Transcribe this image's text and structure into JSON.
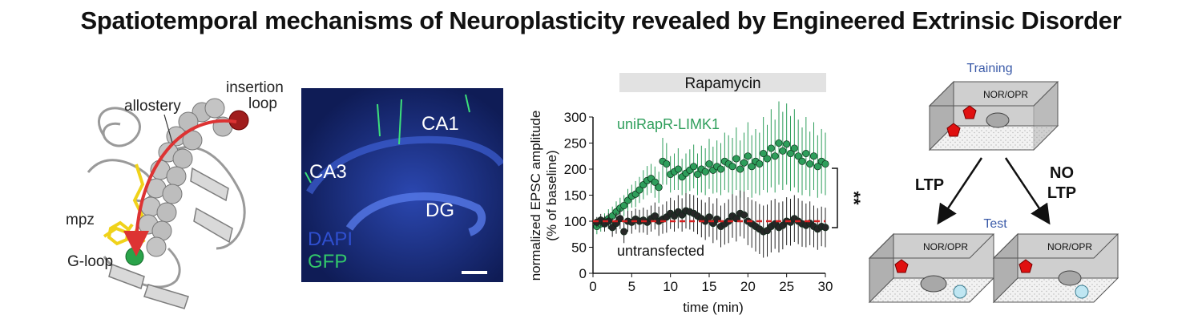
{
  "title": "Spatiotemporal mechanisms of Neuroplasticity revealed by Engineered Extrinsic Disorder",
  "protein": {
    "insertion_loop": [
      "insertion",
      "loop"
    ],
    "allostery": "allostery",
    "mpz": "mpz",
    "g_loop": "G-loop"
  },
  "micrograph": {
    "ca1": "CA1",
    "ca3": "CA3",
    "dg": "DG",
    "dapi": "DAPI",
    "gfp": "GFP"
  },
  "chart_data": {
    "type": "scatter",
    "drug_bar": "Rapamycin",
    "ylabel_line1": "normalized EPSC amplitude",
    "ylabel_line2": "(% of baseline)",
    "xlabel": "time (min)",
    "xlim": [
      0,
      30
    ],
    "ylim": [
      0,
      300
    ],
    "xticks": [
      "0",
      "5",
      "10",
      "15",
      "20",
      "25",
      "30"
    ],
    "yticks": [
      "0",
      "50",
      "100",
      "150",
      "200",
      "250",
      "300"
    ],
    "baseline": 100,
    "significance": "**",
    "series": [
      {
        "name": "uniRapR-LIMK1",
        "color": "#2e9e5b",
        "x": [
          0.5,
          1,
          1.5,
          2,
          2.5,
          3,
          3.5,
          4,
          4.5,
          5,
          5.5,
          6,
          6.5,
          7,
          7.5,
          8,
          8.5,
          9,
          9.5,
          10,
          10.5,
          11,
          11.5,
          12,
          12.5,
          13,
          13.5,
          14,
          14.5,
          15,
          15.5,
          16,
          16.5,
          17,
          17.5,
          18,
          18.5,
          19,
          19.5,
          20,
          20.5,
          21,
          21.5,
          22,
          22.5,
          23,
          23.5,
          24,
          24.5,
          25,
          25.5,
          26,
          26.5,
          27,
          27.5,
          28,
          28.5,
          29,
          29.5,
          30
        ],
        "y": [
          90,
          95,
          100,
          105,
          110,
          118,
          125,
          130,
          140,
          148,
          152,
          160,
          170,
          178,
          182,
          175,
          165,
          215,
          210,
          190,
          195,
          200,
          185,
          192,
          198,
          205,
          190,
          200,
          195,
          210,
          198,
          205,
          200,
          215,
          210,
          205,
          220,
          200,
          212,
          225,
          205,
          215,
          210,
          230,
          220,
          240,
          225,
          250,
          235,
          248,
          230,
          240,
          225,
          215,
          230,
          210,
          225,
          205,
          215,
          210
        ],
        "err": [
          15,
          15,
          15,
          18,
          18,
          20,
          20,
          20,
          22,
          22,
          25,
          25,
          28,
          28,
          28,
          30,
          30,
          45,
          40,
          35,
          35,
          40,
          35,
          38,
          40,
          42,
          40,
          45,
          45,
          48,
          45,
          50,
          50,
          55,
          55,
          55,
          60,
          55,
          58,
          65,
          60,
          62,
          60,
          70,
          65,
          75,
          70,
          80,
          75,
          78,
          72,
          75,
          70,
          65,
          70,
          62,
          65,
          60,
          62,
          60
        ]
      },
      {
        "name": "untransfected",
        "color": "#262626",
        "x": [
          0.5,
          1,
          1.5,
          2,
          2.5,
          3,
          3.5,
          4,
          4.5,
          5,
          5.5,
          6,
          6.5,
          7,
          7.5,
          8,
          8.5,
          9,
          9.5,
          10,
          10.5,
          11,
          11.5,
          12,
          12.5,
          13,
          13.5,
          14,
          14.5,
          15,
          15.5,
          16,
          16.5,
          17,
          17.5,
          18,
          18.5,
          19,
          19.5,
          20,
          20.5,
          21,
          21.5,
          22,
          22.5,
          23,
          23.5,
          24,
          24.5,
          25,
          25.5,
          26,
          26.5,
          27,
          27.5,
          28,
          28.5,
          29,
          29.5,
          30
        ],
        "y": [
          98,
          102,
          95,
          100,
          88,
          96,
          105,
          80,
          100,
          98,
          104,
          100,
          102,
          98,
          105,
          110,
          100,
          104,
          108,
          115,
          110,
          118,
          112,
          120,
          118,
          115,
          110,
          105,
          100,
          108,
          96,
          104,
          90,
          95,
          100,
          110,
          105,
          115,
          112,
          100,
          95,
          90,
          85,
          80,
          82,
          90,
          95,
          88,
          92,
          100,
          98,
          105,
          100,
          95,
          92,
          96,
          90,
          85,
          90,
          88
        ],
        "err": [
          10,
          12,
          15,
          15,
          18,
          20,
          20,
          22,
          20,
          22,
          20,
          22,
          24,
          24,
          25,
          26,
          28,
          28,
          30,
          30,
          30,
          32,
          32,
          34,
          34,
          35,
          35,
          36,
          36,
          38,
          38,
          40,
          40,
          40,
          42,
          42,
          44,
          44,
          45,
          46,
          46,
          48,
          48,
          50,
          50,
          50,
          48,
          48,
          46,
          46,
          45,
          45,
          44,
          44,
          42,
          42,
          40,
          40,
          38,
          38
        ]
      }
    ]
  },
  "behavior": {
    "training": "Training",
    "test": "Test",
    "box_label": "NOR/OPR",
    "ltp": "LTP",
    "no_ltp_line1": "NO",
    "no_ltp_line2": "LTP"
  }
}
